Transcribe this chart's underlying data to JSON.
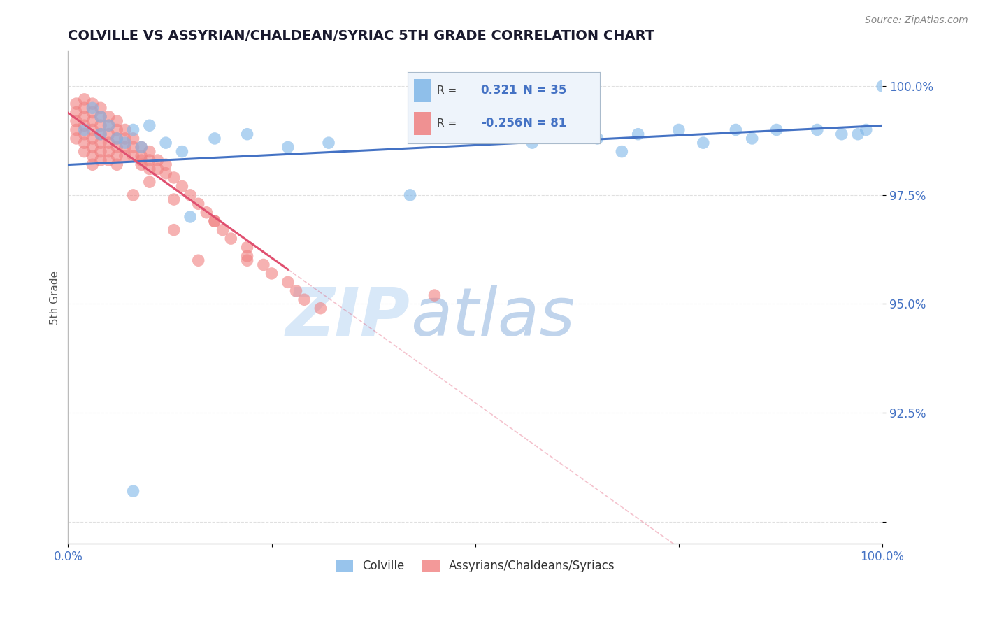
{
  "title": "COLVILLE VS ASSYRIAN/CHALDEAN/SYRIAC 5TH GRADE CORRELATION CHART",
  "source_text": "Source: ZipAtlas.com",
  "ylabel": "5th Grade",
  "xlim": [
    0.0,
    1.0
  ],
  "ylim": [
    0.895,
    1.008
  ],
  "yticks": [
    0.9,
    0.925,
    0.95,
    0.975,
    1.0
  ],
  "ytick_labels": [
    "",
    "92.5%",
    "95.0%",
    "97.5%",
    "100.0%"
  ],
  "xticks": [
    0.0,
    0.25,
    0.5,
    0.75,
    1.0
  ],
  "xtick_labels": [
    "0.0%",
    "",
    "",
    "",
    "100.0%"
  ],
  "legend_r1": "0.321",
  "legend_n1": "35",
  "legend_r2": "-0.256",
  "legend_n2": "81",
  "colville_color": "#7EB6E8",
  "assyrian_color": "#F08080",
  "line_blue": "#4472C4",
  "line_pink": "#E05070",
  "title_color": "#1a1a2e",
  "axis_label_color": "#555555",
  "tick_color": "#4472C4",
  "grid_color": "#CCCCCC",
  "colville_x": [
    0.02,
    0.03,
    0.04,
    0.04,
    0.05,
    0.06,
    0.07,
    0.08,
    0.09,
    0.1,
    0.12,
    0.14,
    0.18,
    0.22,
    0.27,
    0.32,
    0.42,
    0.55,
    0.57,
    0.62,
    0.65,
    0.68,
    0.7,
    0.75,
    0.78,
    0.82,
    0.84,
    0.87,
    0.92,
    0.95,
    0.97,
    0.98,
    0.15,
    0.08,
    1.0
  ],
  "colville_y": [
    0.99,
    0.995,
    0.993,
    0.989,
    0.991,
    0.988,
    0.987,
    0.99,
    0.986,
    0.991,
    0.987,
    0.985,
    0.988,
    0.989,
    0.986,
    0.987,
    0.975,
    0.989,
    0.987,
    0.99,
    0.988,
    0.985,
    0.989,
    0.99,
    0.987,
    0.99,
    0.988,
    0.99,
    0.99,
    0.989,
    0.989,
    0.99,
    0.97,
    0.907,
    1.0
  ],
  "assyrian_x": [
    0.01,
    0.01,
    0.01,
    0.01,
    0.01,
    0.02,
    0.02,
    0.02,
    0.02,
    0.02,
    0.02,
    0.02,
    0.03,
    0.03,
    0.03,
    0.03,
    0.03,
    0.03,
    0.03,
    0.03,
    0.04,
    0.04,
    0.04,
    0.04,
    0.04,
    0.04,
    0.04,
    0.05,
    0.05,
    0.05,
    0.05,
    0.05,
    0.05,
    0.06,
    0.06,
    0.06,
    0.06,
    0.06,
    0.06,
    0.07,
    0.07,
    0.07,
    0.07,
    0.08,
    0.08,
    0.08,
    0.09,
    0.09,
    0.09,
    0.1,
    0.1,
    0.1,
    0.11,
    0.11,
    0.12,
    0.12,
    0.13,
    0.14,
    0.15,
    0.16,
    0.17,
    0.18,
    0.19,
    0.2,
    0.22,
    0.22,
    0.24,
    0.25,
    0.27,
    0.28,
    0.29,
    0.31,
    0.09,
    0.13,
    0.18,
    0.45,
    0.1,
    0.22,
    0.08,
    0.13,
    0.16
  ],
  "assyrian_y": [
    0.996,
    0.994,
    0.992,
    0.99,
    0.988,
    0.997,
    0.995,
    0.993,
    0.991,
    0.989,
    0.987,
    0.985,
    0.996,
    0.994,
    0.992,
    0.99,
    0.988,
    0.986,
    0.984,
    0.982,
    0.995,
    0.993,
    0.991,
    0.989,
    0.987,
    0.985,
    0.983,
    0.993,
    0.991,
    0.989,
    0.987,
    0.985,
    0.983,
    0.992,
    0.99,
    0.988,
    0.986,
    0.984,
    0.982,
    0.99,
    0.988,
    0.986,
    0.984,
    0.988,
    0.986,
    0.984,
    0.986,
    0.984,
    0.982,
    0.985,
    0.983,
    0.981,
    0.983,
    0.981,
    0.982,
    0.98,
    0.979,
    0.977,
    0.975,
    0.973,
    0.971,
    0.969,
    0.967,
    0.965,
    0.963,
    0.961,
    0.959,
    0.957,
    0.955,
    0.953,
    0.951,
    0.949,
    0.983,
    0.974,
    0.969,
    0.952,
    0.978,
    0.96,
    0.975,
    0.967,
    0.96
  ]
}
